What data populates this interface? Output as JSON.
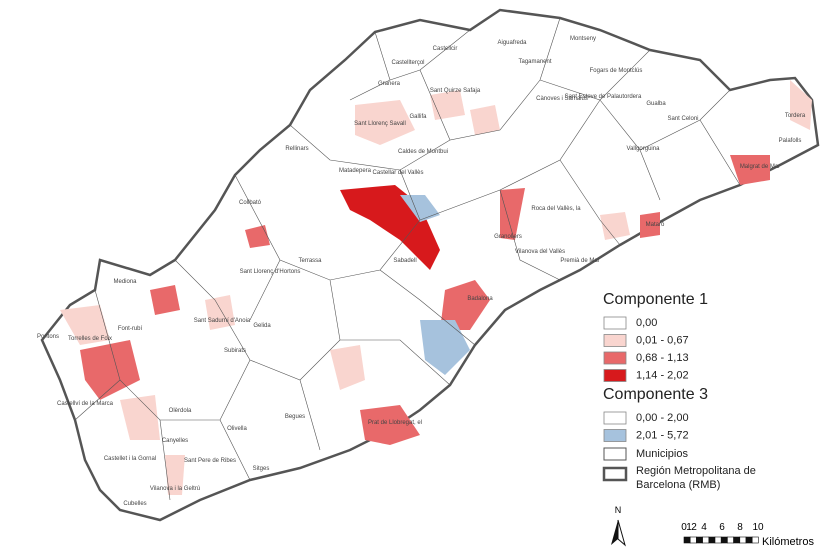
{
  "map": {
    "legend": {
      "components": [
        {
          "title": "Componente 1",
          "items": [
            {
              "label": "0,00",
              "color": "#ffffff"
            },
            {
              "label": "0,01 - 0,67",
              "color": "#f9d5cf"
            },
            {
              "label": "0,68 - 1,13",
              "color": "#e8696a"
            },
            {
              "label": "1,14 - 2,02",
              "color": "#d7191c"
            }
          ]
        },
        {
          "title": "Componente 3",
          "items": [
            {
              "label": "0,00 - 2,00",
              "color": "#ffffff"
            },
            {
              "label": "2,01 - 5,72",
              "color": "#a6c2dd"
            }
          ]
        }
      ],
      "municipalities": "Municipios",
      "region": [
        "Región Metropolitana de",
        "Barcelona (RMB)"
      ]
    },
    "labels": [
      "Castellcir",
      "Aiguafreda",
      "Montseny",
      "Castellterçol",
      "Tagamanent",
      "Fogars de Montclús",
      "Gualba",
      "Granera",
      "Sant Quirze Safaja",
      "Sant Esteve de Palautordera",
      "Sant Celoni",
      "Sant Llorenç Savall",
      "Gallifa",
      "Cànoves i Samalús",
      "Tordera",
      "Palafolls",
      "Rellinars",
      "Caldes de Montbui",
      "Vallgorguina",
      "Malgrat de Mar",
      "Matadepera",
      "Castellar del Vallès",
      "Roca del Vallès, la",
      "Collbató",
      "Terrassa",
      "Granollers",
      "Mataró",
      "Mediona",
      "Sant Llorenç d'Hortons",
      "Vilanova del Vallès",
      "Premià de Mar",
      "Sabadell",
      "Badalona",
      "Torrelles de Foix",
      "Pontons",
      "Font-rubí",
      "Subirats",
      "Gelida",
      "Sant Sadurní d'Anoia",
      "Castellví de la Marca",
      "Olèrdola",
      "Olivella",
      "Begues",
      "Sitges",
      "Vilanova i la Geltrú",
      "Canyelles",
      "Sant Pere de Ribes",
      "Cubelles",
      "Castellet i la Gornal",
      "Prat de Llobregat, el"
    ],
    "north": "N",
    "scale": {
      "ticks": [
        "0",
        "1",
        "2",
        "4",
        "6",
        "8",
        "10"
      ],
      "unit": "Kilómetros"
    }
  }
}
